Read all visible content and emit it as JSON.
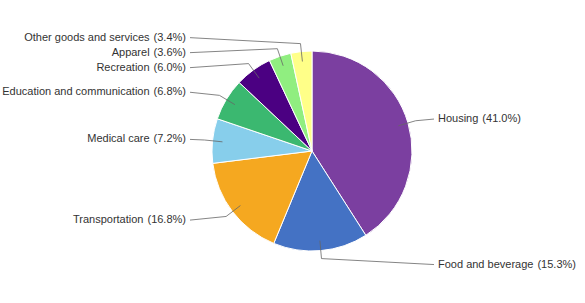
{
  "chart_data": {
    "type": "pie",
    "categories": [
      "Housing",
      "Food and beverage",
      "Transportation",
      "Medical care",
      "Education and communication",
      "Recreation",
      "Apparel",
      "Other goods and services"
    ],
    "values": [
      41.0,
      15.3,
      16.8,
      7.2,
      6.8,
      6.0,
      3.6,
      3.4
    ],
    "value_labels": [
      "(41.0%)",
      "(15.3%)",
      "(16.8%)",
      "(7.2%)",
      "(6.8%)",
      "(6.0%)",
      "(3.6%)",
      "(3.4%)"
    ],
    "colors": [
      "#7B3FA0",
      "#4472C4",
      "#F5A820",
      "#87CEEB",
      "#3BB870",
      "#4B0082",
      "#90EE80",
      "#FFFF88"
    ],
    "data_labels": true
  }
}
